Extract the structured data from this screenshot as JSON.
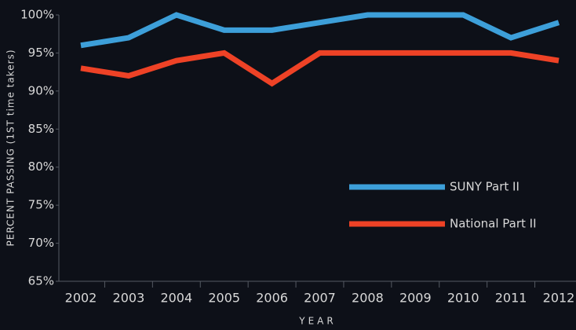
{
  "chart_data": {
    "type": "line",
    "y_label": "PERCENT PASSING (1ST time takers)",
    "x_label": "YEAR",
    "categories": [
      "2002",
      "2003",
      "2004",
      "2005",
      "2006",
      "2007",
      "2008",
      "2009",
      "2010",
      "2011",
      "2012"
    ],
    "series": [
      {
        "name": "SUNY Part II",
        "color": "#3d9fd9",
        "values": [
          96,
          97,
          100,
          98,
          98,
          99,
          100,
          100,
          100,
          97,
          99
        ]
      },
      {
        "name": "National Part II",
        "color": "#ee4226",
        "values": [
          93,
          92,
          94,
          95,
          91,
          95,
          95,
          95,
          95,
          95,
          94
        ]
      }
    ],
    "ylim": [
      65,
      100
    ],
    "yticks": [
      {
        "value": 65,
        "label": "65%"
      },
      {
        "value": 70,
        "label": "70%"
      },
      {
        "value": 75,
        "label": "75%"
      },
      {
        "value": 80,
        "label": "80%"
      },
      {
        "value": 85,
        "label": "85%"
      },
      {
        "value": 90,
        "label": "90%"
      },
      {
        "value": 95,
        "label": "95%"
      },
      {
        "value": 100,
        "label": "100%"
      }
    ]
  }
}
